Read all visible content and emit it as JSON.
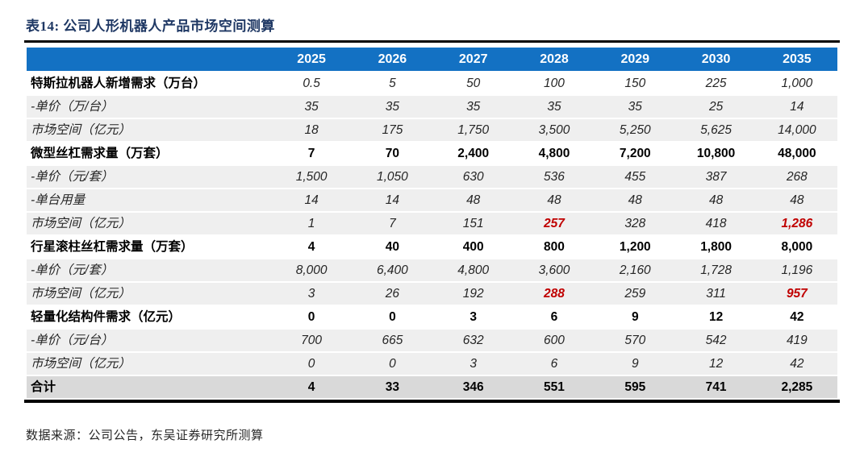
{
  "header": {
    "title": "表14:  公司人形机器人产品市场空间测算"
  },
  "footer": {
    "source_note": "数据来源：公司公告，东吴证券研究所测算"
  },
  "colors": {
    "header_bg": "#1371C3",
    "header_text": "#FFFFFF",
    "title_navy": "#1F3864",
    "subrow_bg": "#EFEFEF",
    "total_row_bg": "#D9D9D9",
    "highlight_red": "#C00000",
    "rule_black": "#000000"
  },
  "table": {
    "columns": [
      "",
      "2025",
      "2026",
      "2027",
      "2028",
      "2029",
      "2030",
      "2035"
    ],
    "rows": [
      {
        "label": "特斯拉机器人新增需求（万台）",
        "style": "section-italic",
        "values": [
          "0.5",
          "5",
          "50",
          "100",
          "150",
          "225",
          "1,000"
        ]
      },
      {
        "label": "-单价（万/台）",
        "style": "sub",
        "values": [
          "35",
          "35",
          "35",
          "35",
          "35",
          "25",
          "14"
        ]
      },
      {
        "label": "市场空间（亿元）",
        "style": "sub",
        "values": [
          "18",
          "175",
          "1,750",
          "3,500",
          "5,250",
          "5,625",
          "14,000"
        ]
      },
      {
        "label": "微型丝杠需求量（万套）",
        "style": "section",
        "values": [
          "7",
          "70",
          "2,400",
          "4,800",
          "7,200",
          "10,800",
          "48,000"
        ]
      },
      {
        "label": "-单价（元/套）",
        "style": "sub",
        "values": [
          "1,500",
          "1,050",
          "630",
          "536",
          "455",
          "387",
          "268"
        ]
      },
      {
        "label": "-单台用量",
        "style": "sub",
        "values": [
          "14",
          "14",
          "48",
          "48",
          "48",
          "48",
          "48"
        ]
      },
      {
        "label": "市场空间（亿元）",
        "style": "sub",
        "highlight": [
          3,
          6
        ],
        "values": [
          "1",
          "7",
          "151",
          "257",
          "328",
          "418",
          "1,286"
        ]
      },
      {
        "label": "行星滚柱丝杠需求量（万套）",
        "style": "section",
        "values": [
          "4",
          "40",
          "400",
          "800",
          "1,200",
          "1,800",
          "8,000"
        ]
      },
      {
        "label": "-单价（元/套）",
        "style": "sub",
        "values": [
          "8,000",
          "6,400",
          "4,800",
          "3,600",
          "2,160",
          "1,728",
          "1,196"
        ]
      },
      {
        "label": "市场空间（亿元）",
        "style": "sub",
        "highlight": [
          3,
          6
        ],
        "values": [
          "3",
          "26",
          "192",
          "288",
          "259",
          "311",
          "957"
        ]
      },
      {
        "label": "轻量化结构件需求（亿元）",
        "style": "section",
        "values": [
          "0",
          "0",
          "3",
          "6",
          "9",
          "12",
          "42"
        ]
      },
      {
        "label": "-单价（元/台）",
        "style": "sub",
        "values": [
          "700",
          "665",
          "632",
          "600",
          "570",
          "542",
          "419"
        ]
      },
      {
        "label": "市场空间（亿元）",
        "style": "sub",
        "values": [
          "0",
          "0",
          "3",
          "6",
          "9",
          "12",
          "42"
        ]
      },
      {
        "label": "合计",
        "style": "total",
        "values": [
          "4",
          "33",
          "346",
          "551",
          "595",
          "741",
          "2,285"
        ]
      }
    ]
  }
}
